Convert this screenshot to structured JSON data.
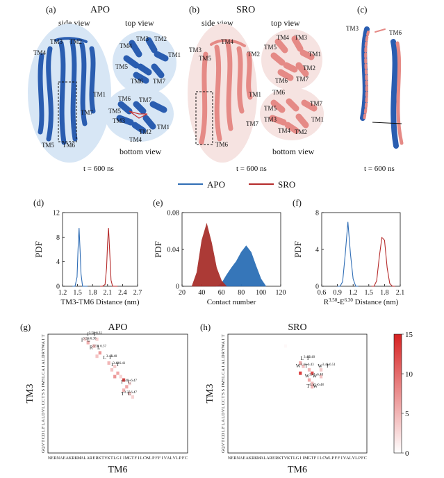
{
  "panels": {
    "a": {
      "letter": "(a)",
      "title": "APO",
      "side": "side view",
      "top": "top view",
      "bottom": "bottom view",
      "time": "t = 600 ns"
    },
    "b": {
      "letter": "(b)",
      "title": "SRO",
      "side": "side view",
      "top": "top view",
      "bottom": "bottom view",
      "time": "t = 600 ns"
    },
    "c": {
      "letter": "(c)",
      "time": "t = 600 ns",
      "tm3": "TM3",
      "tm6": "TM6"
    }
  },
  "tm_labels": [
    "TM1",
    "TM2",
    "TM3",
    "TM4",
    "TM5",
    "TM6",
    "TM7"
  ],
  "legend": {
    "apo": "APO",
    "sro": "SRO",
    "apo_color": "#2f6db5",
    "sro_color": "#b52a2a"
  },
  "colors": {
    "apo_fill": "#2c6fb6",
    "sro_fill": "#a8302c",
    "apo_bg": "#d7e6f5",
    "sro_bg": "#f6e3e1",
    "apo_helix": "#2a5db0",
    "sro_helix": "#e58a86"
  },
  "chart_data": [
    {
      "letter": "(d)",
      "type": "line",
      "xlabel": "TM3-TM6 Distance (nm)",
      "ylabel": "PDF",
      "xlim": [
        1.2,
        2.7
      ],
      "ylim": [
        0,
        12
      ],
      "xticks": [
        "1.2",
        "1.5",
        "1.8",
        "2.1",
        "2.4",
        "2.7"
      ],
      "yticks": [
        "0",
        "4",
        "8",
        "12"
      ],
      "series": [
        {
          "color": "#2f6db5",
          "x": [
            1.4,
            1.45,
            1.49,
            1.51,
            1.53,
            1.55,
            1.57,
            1.6,
            1.65,
            1.7
          ],
          "y": [
            0,
            0,
            1.5,
            6,
            9.5,
            6,
            2,
            0,
            0,
            0
          ]
        },
        {
          "color": "#b52a2a",
          "x": [
            1.95,
            2.0,
            2.05,
            2.08,
            2.1,
            2.12,
            2.14,
            2.17,
            2.2,
            2.25,
            2.3
          ],
          "y": [
            0,
            0,
            0.3,
            3,
            7,
            9.5,
            6,
            1,
            0,
            0,
            0
          ]
        }
      ]
    },
    {
      "letter": "(e)",
      "type": "area",
      "xlabel": "Contact number",
      "ylabel": "PDF",
      "xlim": [
        20,
        120
      ],
      "ylim": [
        0,
        0.08
      ],
      "xticks": [
        "20",
        "40",
        "60",
        "80",
        "100",
        "120"
      ],
      "yticks": [
        "0",
        "0.04",
        "0.08"
      ],
      "series": [
        {
          "color": "#2c6fb6",
          "x": [
            55,
            60,
            65,
            70,
            75,
            80,
            85,
            90,
            95,
            100,
            105
          ],
          "y": [
            0,
            0.003,
            0.012,
            0.02,
            0.027,
            0.037,
            0.044,
            0.037,
            0.022,
            0.008,
            0
          ]
        },
        {
          "color": "#a8302c",
          "x": [
            30,
            35,
            40,
            45,
            50,
            55,
            60,
            65
          ],
          "y": [
            0,
            0.015,
            0.05,
            0.068,
            0.047,
            0.02,
            0.006,
            0
          ]
        }
      ]
    },
    {
      "letter": "(f)",
      "type": "line",
      "xlabel": "Distance (nm)",
      "xlabel_res": "R",
      "xlabel_sup1": "3.50",
      "xlabel_mid": "-E",
      "xlabel_sup2": "6.30",
      "ylabel": "PDF",
      "xlim": [
        0.6,
        2.1
      ],
      "ylim": [
        0,
        8
      ],
      "xticks": [
        "0.6",
        "0.9",
        "1.2",
        "1.5",
        "1.8",
        "2.1"
      ],
      "yticks": [
        "0",
        "4",
        "8"
      ],
      "series": [
        {
          "color": "#2f6db5",
          "x": [
            0.9,
            0.95,
            1.0,
            1.05,
            1.1,
            1.15,
            1.2,
            1.25,
            1.3
          ],
          "y": [
            0,
            0,
            0.5,
            3.5,
            7.0,
            3.5,
            0.8,
            0,
            0
          ]
        },
        {
          "color": "#b52a2a",
          "x": [
            1.55,
            1.6,
            1.65,
            1.7,
            1.75,
            1.8,
            1.85,
            1.9,
            1.95,
            2.0
          ],
          "y": [
            0,
            0,
            0.6,
            3.2,
            5.3,
            5.0,
            2.0,
            0.3,
            0,
            0
          ]
        }
      ]
    },
    {
      "letter": "(g)",
      "type": "heatmap",
      "title": "APO",
      "xlabel": "TM6",
      "ylabel": "TM3",
      "x_seq": "NERNAEAKRKMALARERKTVKTLGIIMGTFILCWLPFFIVALVLPFC",
      "y_seq": "GQVTCDLFLALDVLCCTSSIWHLCAIALDRYWAIT",
      "cells": [
        {
          "xi": 12,
          "yi": 33,
          "v": 2.5
        },
        {
          "xi": 16,
          "yi": 33,
          "v": 3
        },
        {
          "xi": 13,
          "yi": 32,
          "v": 5.5
        },
        {
          "xi": 15,
          "yi": 31,
          "v": 4.5
        },
        {
          "xi": 17,
          "yi": 29,
          "v": 7
        },
        {
          "xi": 16,
          "yi": 28,
          "v": 4
        },
        {
          "xi": 20,
          "yi": 26,
          "v": 5
        },
        {
          "xi": 22,
          "yi": 25,
          "v": 3.5
        },
        {
          "xi": 21,
          "yi": 24,
          "v": 4
        },
        {
          "xi": 23,
          "yi": 23,
          "v": 6
        },
        {
          "xi": 22,
          "yi": 22,
          "v": 7
        },
        {
          "xi": 24,
          "yi": 22,
          "v": 3
        },
        {
          "xi": 25,
          "yi": 21,
          "v": 12
        },
        {
          "xi": 27,
          "yi": 20,
          "v": 3
        },
        {
          "xi": 26,
          "yi": 19,
          "v": 6
        },
        {
          "xi": 25,
          "yi": 18,
          "v": 5
        },
        {
          "xi": 27,
          "yi": 17,
          "v": 4
        },
        {
          "xi": 28,
          "yi": 16,
          "v": 3
        }
      ],
      "annotations": [
        {
          "xi": 13.2,
          "yi": 34.5,
          "text": "I",
          "sup": "3.52"
        },
        {
          "xi": 15.2,
          "yi": 34.5,
          "text": "T",
          "sup": "6.31"
        },
        {
          "xi": 11.2,
          "yi": 32.8,
          "text": "I",
          "sup": "3.55"
        },
        {
          "xi": 13.2,
          "yi": 32.8,
          "text": "E",
          "sup": "6.30"
        },
        {
          "xi": 14.0,
          "yi": 30.6,
          "text": "R",
          "sup": "3.50"
        },
        {
          "xi": 16.6,
          "yi": 30.6,
          "text": "L",
          "sup": "6.37"
        },
        {
          "xi": 18.6,
          "yi": 27.6,
          "text": "L",
          "sup": "3.43"
        },
        {
          "xi": 20.6,
          "yi": 27.6,
          "text": "I",
          "sup": "6.40"
        },
        {
          "xi": 21.3,
          "yi": 25.6,
          "text": "I",
          "sup": "3.40"
        },
        {
          "xi": 23.0,
          "yi": 25.6,
          "text": "T",
          "sup": "6.41"
        },
        {
          "xi": 24.6,
          "yi": 20.5,
          "text": "I",
          "sup": "3.40"
        },
        {
          "xi": 26.8,
          "yi": 20.5,
          "text": "C",
          "sup": "6.47"
        },
        {
          "xi": 24.6,
          "yi": 17.0,
          "text": "T",
          "sup": "3.37"
        },
        {
          "xi": 26.8,
          "yi": 17.0,
          "text": "C",
          "sup": "6.47"
        }
      ]
    },
    {
      "letter": "(h)",
      "type": "heatmap",
      "title": "SRO",
      "xlabel": "TM6",
      "ylabel": "TM3",
      "x_seq": "NERNAEAKRKMALARERKTVKTLGIIMGTFILCWLPFFIVALVLPFC",
      "y_seq": "GQVTCDLFLALDVLCCTSSIWHLCAIALDRYWAIT",
      "colorbar": {
        "min": 0,
        "max": 15,
        "ticks": [
          "0",
          "5",
          "10",
          "15"
        ]
      },
      "cells": [
        {
          "xi": 19,
          "yi": 31,
          "v": 0.5
        },
        {
          "xi": 24,
          "yi": 26,
          "v": 6
        },
        {
          "xi": 25,
          "yi": 25,
          "v": 4
        },
        {
          "xi": 27,
          "yi": 24,
          "v": 5
        },
        {
          "xi": 31,
          "yi": 24,
          "v": 3.5
        },
        {
          "xi": 24,
          "yi": 23,
          "v": 13
        },
        {
          "xi": 28,
          "yi": 23,
          "v": 12
        },
        {
          "xi": 31,
          "yi": 22,
          "v": 4
        },
        {
          "xi": 27,
          "yi": 21,
          "v": 6
        },
        {
          "xi": 28,
          "yi": 20,
          "v": 4.5
        },
        {
          "xi": 28,
          "yi": 19,
          "v": 5
        }
      ],
      "annotations": [
        {
          "xi": 24.6,
          "yi": 27.4,
          "text": "L",
          "sup": "3.43"
        },
        {
          "xi": 26.8,
          "yi": 27.4,
          "text": "I",
          "sup": "6.40"
        },
        {
          "xi": 23.0,
          "yi": 25.2,
          "text": "W",
          "sup": "3.41"
        },
        {
          "xi": 26.0,
          "yi": 25.2,
          "text": "T",
          "sup": "6.43"
        },
        {
          "xi": 30.4,
          "yi": 25.2,
          "text": "W",
          "sup": "3.41"
        },
        {
          "xi": 33.4,
          "yi": 25.2,
          "text": "F",
          "sup": "6.51"
        },
        {
          "xi": 26.0,
          "yi": 22.2,
          "text": "W",
          "sup": "3.41"
        },
        {
          "xi": 28.6,
          "yi": 22.2,
          "text": "W",
          "sup": "6.48"
        },
        {
          "xi": 26.6,
          "yi": 19.2,
          "text": "T",
          "sup": "3.37"
        },
        {
          "xi": 28.8,
          "yi": 19.2,
          "text": "W",
          "sup": "6.48"
        }
      ]
    }
  ]
}
